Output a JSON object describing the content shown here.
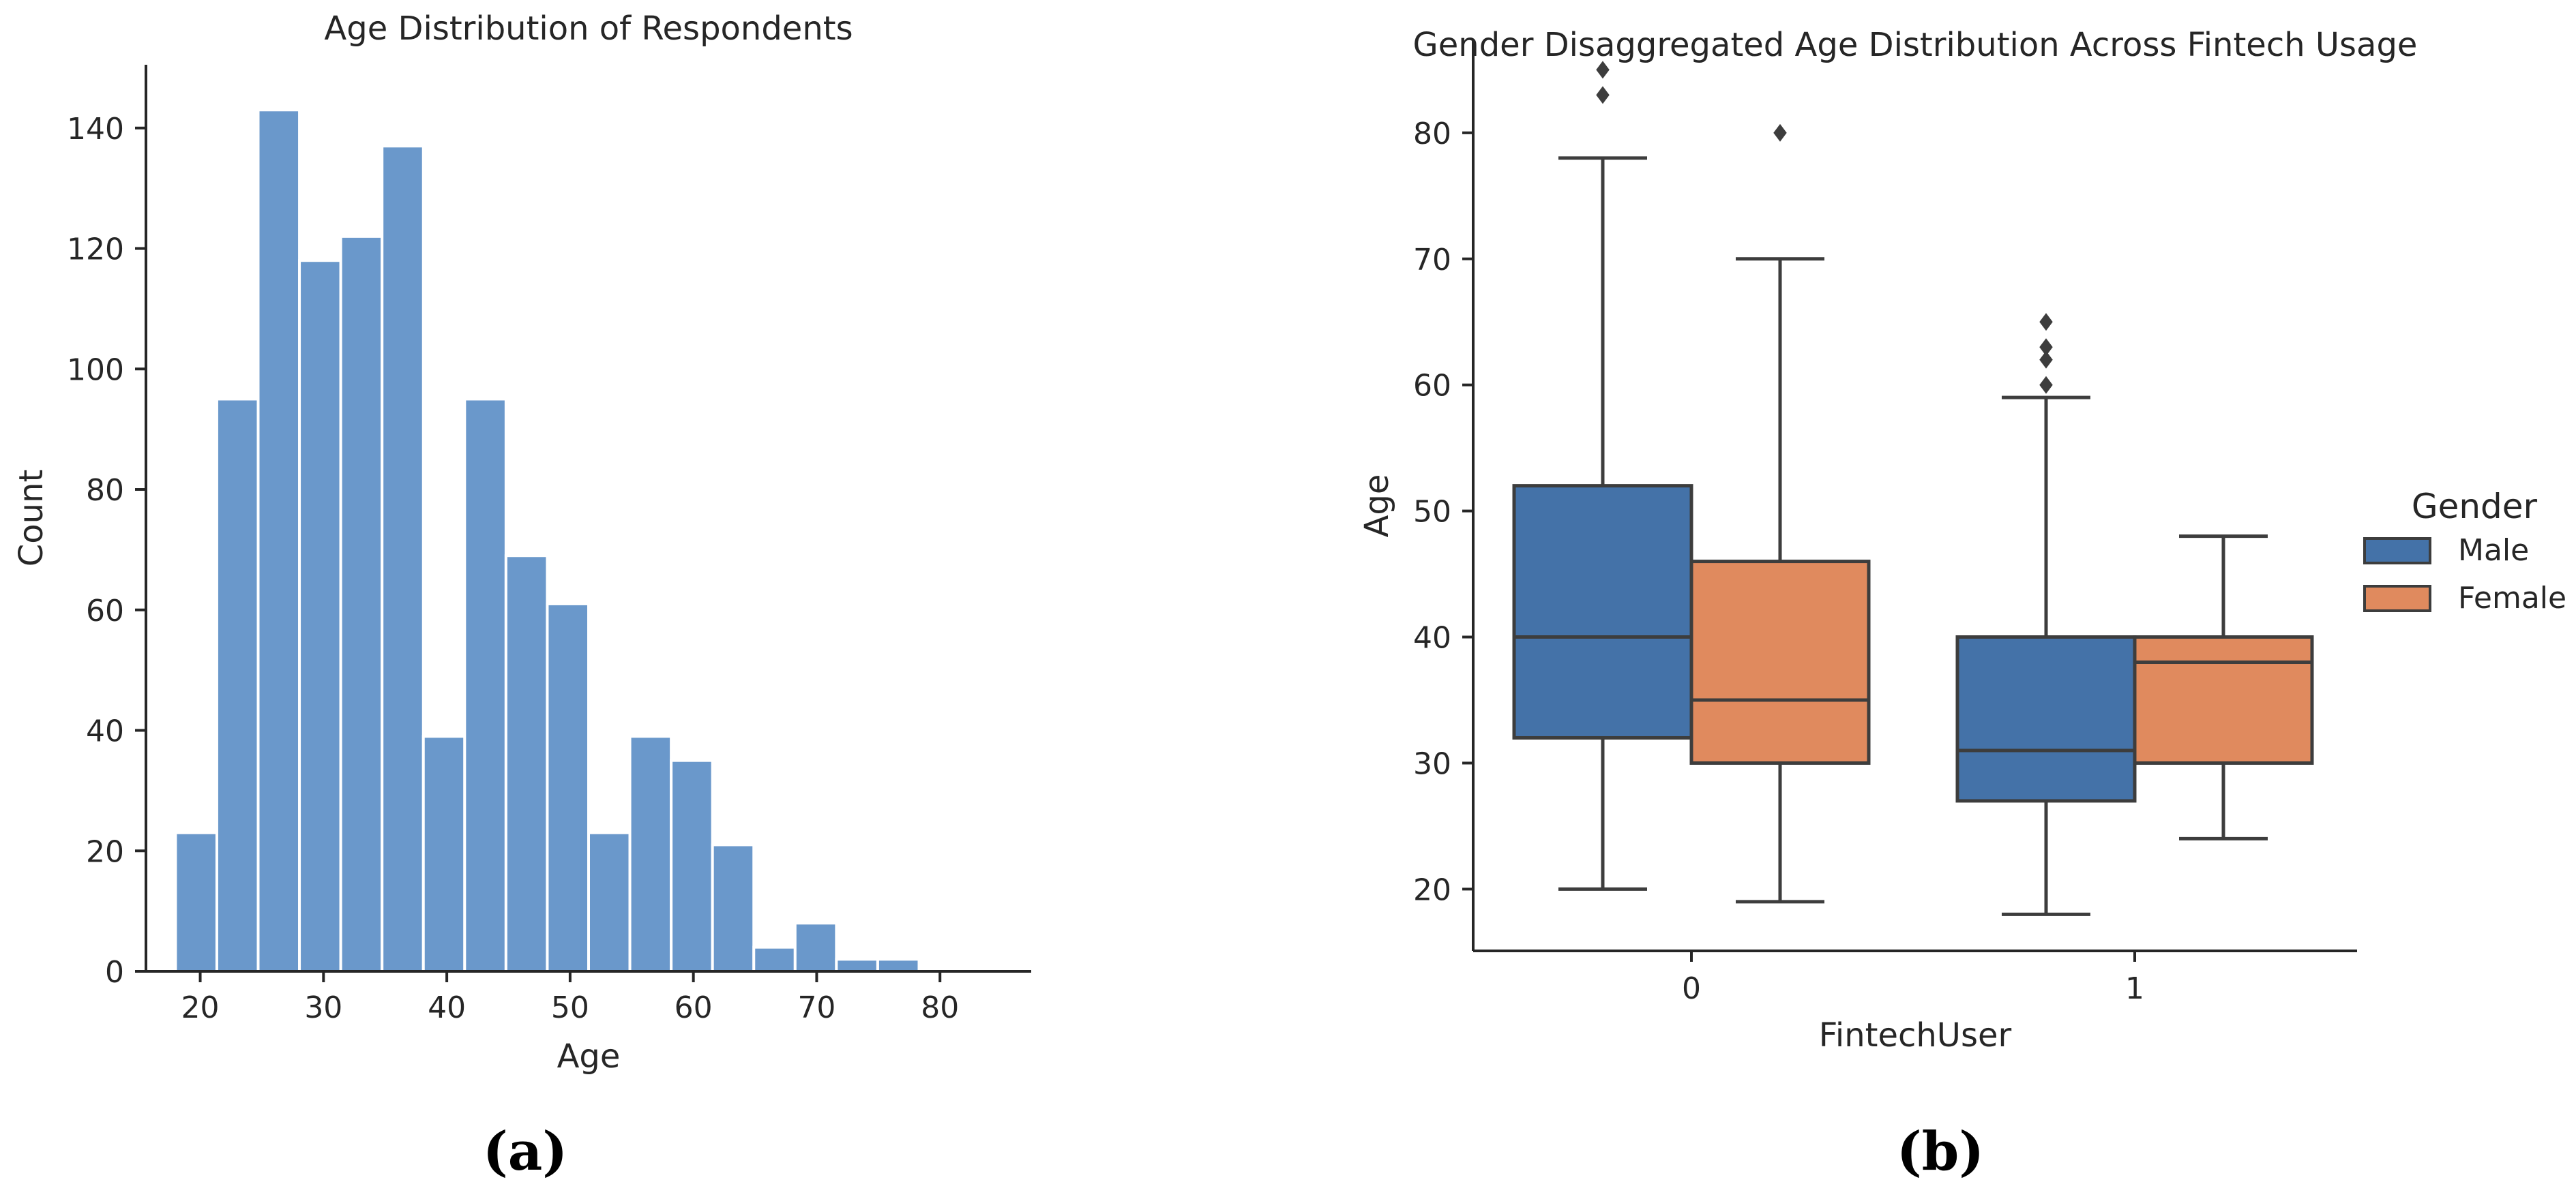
{
  "chart_data": [
    {
      "type": "bar",
      "title": "Age Distribution of Respondents",
      "xlabel": "Age",
      "ylabel": "Count",
      "xlim": [
        15.6,
        87.4
      ],
      "ylim": [
        0,
        150.5
      ],
      "bin_width": 3.35,
      "bin_start": 18,
      "values": [
        23,
        95,
        143,
        118,
        122,
        137,
        39,
        95,
        69,
        61,
        23,
        39,
        35,
        21,
        4,
        8,
        2,
        2
      ],
      "xticks": [
        20,
        30,
        40,
        50,
        60,
        70,
        80
      ],
      "yticks": [
        0,
        20,
        40,
        60,
        80,
        100,
        120,
        140
      ],
      "color": "#6a98cb",
      "caption": "(a)"
    },
    {
      "type": "box",
      "title": "Gender Disaggregated Age Distribution Across Fintech Usage",
      "xlabel": "FintechUser",
      "ylabel": "Age",
      "ylim": [
        15.1,
        87.4
      ],
      "categories": [
        "0",
        "1"
      ],
      "yticks": [
        20,
        30,
        40,
        50,
        60,
        70,
        80
      ],
      "legend": {
        "title": "Gender",
        "position": "right"
      },
      "series": [
        {
          "name": "Male",
          "color": "#4472a8",
          "boxes": [
            {
              "whislo": 20,
              "q1": 32,
              "med": 40,
              "q3": 52,
              "whishi": 78,
              "fliers": [
                83,
                85
              ]
            },
            {
              "whislo": 18,
              "q1": 27,
              "med": 31,
              "q3": 40,
              "whishi": 59,
              "fliers": [
                60,
                62,
                63,
                65
              ]
            }
          ]
        },
        {
          "name": "Female",
          "color": "#e08a5e",
          "boxes": [
            {
              "whislo": 19,
              "q1": 30,
              "med": 35,
              "q3": 46,
              "whishi": 70,
              "fliers": [
                80
              ]
            },
            {
              "whislo": 24,
              "q1": 30,
              "med": 38,
              "q3": 40,
              "whishi": 48,
              "fliers": []
            }
          ]
        }
      ],
      "caption": "(b)"
    }
  ]
}
